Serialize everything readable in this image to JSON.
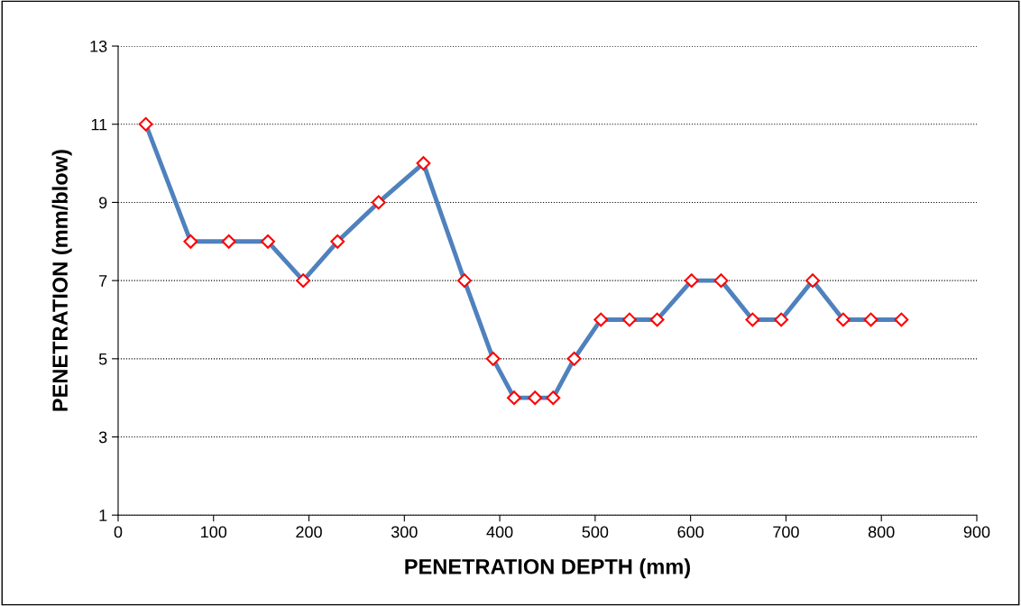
{
  "chart_data": {
    "type": "line",
    "xlabel": "PENETRATION DEPTH (mm)",
    "ylabel": "PENETRATION (mm/blow)",
    "x": [
      29,
      76,
      116,
      157,
      194,
      230,
      273,
      320,
      363,
      393,
      415,
      437,
      456,
      478,
      506,
      536,
      565,
      601,
      632,
      665,
      695,
      728,
      760,
      789,
      821
    ],
    "series": [
      {
        "color": "#4f81bd",
        "values": [
          11,
          8,
          8,
          8,
          7,
          8,
          9,
          10,
          7,
          5,
          4,
          4,
          4,
          5,
          6,
          6,
          6,
          7,
          7,
          6,
          6,
          7,
          6,
          6,
          6
        ]
      }
    ],
    "xlim": [
      0,
      900
    ],
    "xticks": [
      0,
      100,
      200,
      300,
      400,
      500,
      600,
      700,
      800,
      900
    ],
    "ylim": [
      1,
      13
    ],
    "yticks": [
      1,
      3,
      5,
      7,
      9,
      11,
      13
    ],
    "grid": "y",
    "marker": "diamond",
    "line_style": "solid"
  }
}
